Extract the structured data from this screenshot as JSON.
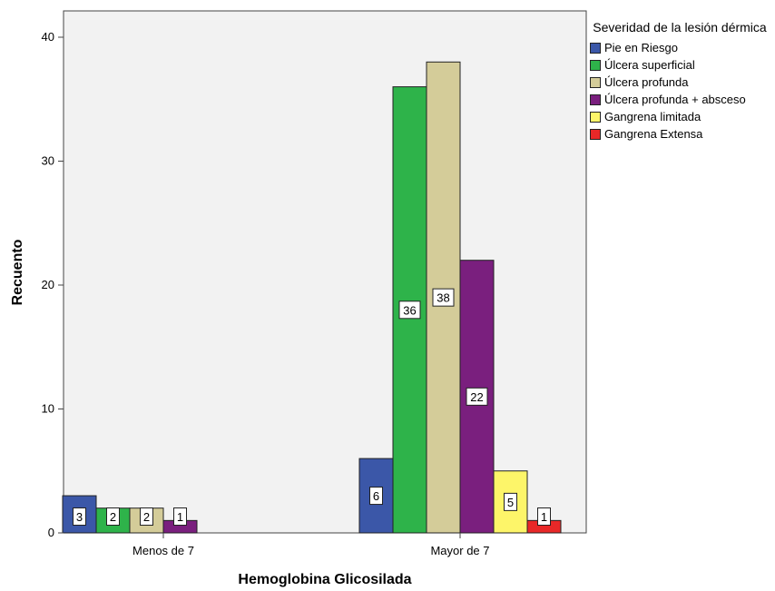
{
  "chart_data": {
    "type": "bar",
    "xlabel": "Hemoglobina Glicosilada",
    "ylabel": "Recuento",
    "ylim": [
      0,
      40
    ],
    "yticks": [
      "0",
      "10",
      "20",
      "30",
      "40"
    ],
    "categories": [
      "Menos de 7",
      "Mayor de 7"
    ],
    "legend": {
      "title": "Severidad de la lesión dérmica",
      "placement": "right"
    },
    "series": [
      {
        "name": "Pie en Riesgo",
        "color": "#3b57a8",
        "values": [
          3,
          6
        ],
        "labels": [
          "3",
          "6"
        ]
      },
      {
        "name": "Úlcera superficial",
        "color": "#2eb34a",
        "values": [
          2,
          36
        ],
        "labels": [
          "2",
          "36"
        ]
      },
      {
        "name": "Úlcera profunda",
        "color": "#d4cc99",
        "values": [
          2,
          38
        ],
        "labels": [
          "2",
          "38"
        ]
      },
      {
        "name": "Úlcera profunda + absceso",
        "color": "#7a1f7e",
        "values": [
          1,
          22
        ],
        "labels": [
          "1",
          "22"
        ]
      },
      {
        "name": "Gangrena limitada",
        "color": "#fdf569",
        "values": [
          0,
          5
        ],
        "labels": [
          "",
          "5"
        ]
      },
      {
        "name": "Gangrena Extensa",
        "color": "#e82828",
        "values": [
          0,
          1
        ],
        "labels": [
          "",
          "1"
        ]
      }
    ]
  }
}
